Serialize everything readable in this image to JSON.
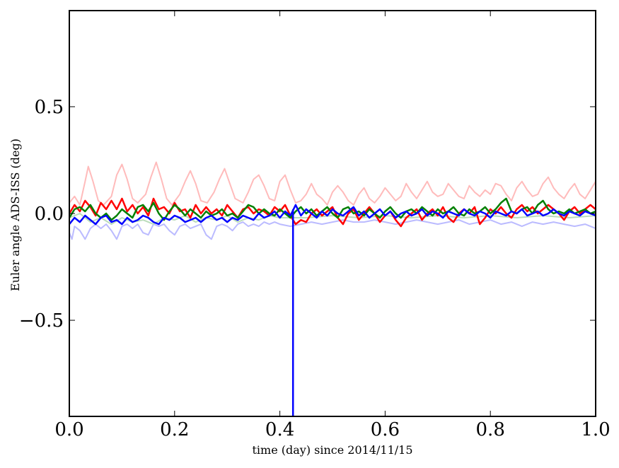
{
  "chart_data": {
    "type": "line",
    "title": "",
    "xlabel": "time (day) since 2014/11/15",
    "ylabel": "Euler angle ADS-ISS (deg)",
    "xlim": [
      0.0,
      1.0
    ],
    "ylim": [
      -0.95,
      0.95
    ],
    "xticks": [
      0.0,
      0.2,
      0.4,
      0.6,
      0.8,
      1.0
    ],
    "xtick_labels": [
      "0.0",
      "0.2",
      "0.4",
      "0.6",
      "0.8",
      "1.0"
    ],
    "yticks": [
      -0.5,
      0.0,
      0.5
    ],
    "ytick_labels": [
      "−0.5",
      "0.0",
      "0.5"
    ],
    "grid": false,
    "legend": "none",
    "spike": {
      "x": 0.425,
      "y_min": -0.95,
      "color": "#0000ff"
    },
    "series": [
      {
        "color": "#ffbbbb",
        "width": 2,
        "x": [
          0.0,
          0.01,
          0.02,
          0.03,
          0.036,
          0.045,
          0.055,
          0.065,
          0.08,
          0.09,
          0.1,
          0.11,
          0.12,
          0.13,
          0.145,
          0.155,
          0.165,
          0.175,
          0.185,
          0.195,
          0.21,
          0.22,
          0.23,
          0.24,
          0.25,
          0.262,
          0.275,
          0.285,
          0.295,
          0.305,
          0.315,
          0.33,
          0.34,
          0.35,
          0.36,
          0.37,
          0.38,
          0.39,
          0.4,
          0.41,
          0.42,
          0.43,
          0.44,
          0.45,
          0.46,
          0.47,
          0.48,
          0.49,
          0.5,
          0.51,
          0.52,
          0.53,
          0.54,
          0.55,
          0.56,
          0.57,
          0.58,
          0.59,
          0.6,
          0.61,
          0.62,
          0.63,
          0.64,
          0.65,
          0.66,
          0.67,
          0.68,
          0.69,
          0.7,
          0.71,
          0.72,
          0.73,
          0.74,
          0.75,
          0.76,
          0.77,
          0.78,
          0.79,
          0.8,
          0.81,
          0.82,
          0.83,
          0.84,
          0.85,
          0.86,
          0.87,
          0.88,
          0.89,
          0.9,
          0.91,
          0.92,
          0.93,
          0.94,
          0.95,
          0.96,
          0.97,
          0.98,
          0.99,
          1.0
        ],
        "y": [
          0.05,
          0.08,
          0.04,
          0.15,
          0.22,
          0.15,
          0.06,
          0.04,
          0.08,
          0.18,
          0.23,
          0.16,
          0.07,
          0.05,
          0.09,
          0.17,
          0.24,
          0.16,
          0.07,
          0.04,
          0.09,
          0.15,
          0.2,
          0.14,
          0.06,
          0.05,
          0.1,
          0.16,
          0.21,
          0.14,
          0.07,
          0.05,
          0.1,
          0.16,
          0.18,
          0.13,
          0.07,
          0.06,
          0.15,
          0.18,
          0.11,
          0.05,
          0.06,
          0.09,
          0.14,
          0.09,
          0.07,
          0.04,
          0.1,
          0.13,
          0.1,
          0.06,
          0.04,
          0.09,
          0.12,
          0.07,
          0.05,
          0.08,
          0.12,
          0.09,
          0.06,
          0.08,
          0.14,
          0.1,
          0.07,
          0.11,
          0.15,
          0.1,
          0.08,
          0.09,
          0.14,
          0.11,
          0.08,
          0.07,
          0.13,
          0.1,
          0.08,
          0.11,
          0.09,
          0.14,
          0.13,
          0.09,
          0.06,
          0.12,
          0.15,
          0.11,
          0.08,
          0.09,
          0.14,
          0.17,
          0.12,
          0.09,
          0.07,
          0.11,
          0.14,
          0.09,
          0.07,
          0.11,
          0.15
        ]
      },
      {
        "color": "#bbbbff",
        "width": 2,
        "x": [
          0.0,
          0.005,
          0.01,
          0.02,
          0.03,
          0.04,
          0.05,
          0.06,
          0.07,
          0.08,
          0.09,
          0.1,
          0.11,
          0.12,
          0.13,
          0.14,
          0.15,
          0.16,
          0.17,
          0.18,
          0.19,
          0.2,
          0.21,
          0.22,
          0.23,
          0.24,
          0.25,
          0.26,
          0.27,
          0.28,
          0.29,
          0.3,
          0.31,
          0.32,
          0.33,
          0.34,
          0.35,
          0.36,
          0.37,
          0.38,
          0.39,
          0.4,
          0.42,
          0.44,
          0.46,
          0.48,
          0.5,
          0.52,
          0.54,
          0.56,
          0.58,
          0.6,
          0.62,
          0.64,
          0.66,
          0.68,
          0.7,
          0.72,
          0.74,
          0.76,
          0.78,
          0.8,
          0.82,
          0.84,
          0.86,
          0.88,
          0.9,
          0.92,
          0.94,
          0.96,
          0.98,
          1.0
        ],
        "y": [
          -0.09,
          -0.12,
          -0.06,
          -0.08,
          -0.12,
          -0.07,
          -0.05,
          -0.07,
          -0.05,
          -0.08,
          -0.12,
          -0.06,
          -0.05,
          -0.07,
          -0.05,
          -0.09,
          -0.1,
          -0.05,
          -0.06,
          -0.05,
          -0.08,
          -0.1,
          -0.06,
          -0.05,
          -0.07,
          -0.06,
          -0.05,
          -0.1,
          -0.12,
          -0.06,
          -0.05,
          -0.06,
          -0.08,
          -0.05,
          -0.04,
          -0.06,
          -0.05,
          -0.06,
          -0.04,
          -0.05,
          -0.04,
          -0.05,
          -0.06,
          -0.05,
          -0.04,
          -0.05,
          -0.04,
          -0.03,
          -0.04,
          -0.04,
          -0.03,
          -0.04,
          -0.05,
          -0.04,
          -0.03,
          -0.04,
          -0.05,
          -0.04,
          -0.03,
          -0.05,
          -0.04,
          -0.03,
          -0.05,
          -0.04,
          -0.06,
          -0.04,
          -0.05,
          -0.04,
          -0.05,
          -0.06,
          -0.05,
          -0.07
        ]
      },
      {
        "color": "#bbddbb",
        "width": 2,
        "x": [
          0.0,
          0.02,
          0.04,
          0.06,
          0.08,
          0.1,
          0.12,
          0.14,
          0.16,
          0.18,
          0.2,
          0.22,
          0.24,
          0.26,
          0.28,
          0.3,
          0.32,
          0.34,
          0.36,
          0.38,
          0.4,
          0.45,
          0.5,
          0.55,
          0.6,
          0.65,
          0.7,
          0.75,
          0.8,
          0.85,
          0.9,
          0.95,
          1.0
        ],
        "y": [
          -0.02,
          0.0,
          -0.04,
          -0.02,
          -0.05,
          -0.02,
          -0.04,
          -0.03,
          -0.05,
          -0.02,
          -0.03,
          -0.01,
          -0.04,
          -0.02,
          -0.03,
          -0.01,
          -0.04,
          -0.02,
          -0.03,
          -0.01,
          -0.02,
          -0.02,
          -0.01,
          -0.02,
          -0.01,
          -0.02,
          -0.01,
          -0.02,
          -0.01,
          -0.02,
          -0.01,
          -0.02,
          -0.01
        ]
      },
      {
        "color": "#ff0000",
        "width": 2.5,
        "x": [
          0.0,
          0.01,
          0.02,
          0.03,
          0.04,
          0.05,
          0.06,
          0.07,
          0.08,
          0.09,
          0.1,
          0.11,
          0.12,
          0.13,
          0.14,
          0.15,
          0.16,
          0.17,
          0.18,
          0.19,
          0.2,
          0.21,
          0.22,
          0.23,
          0.24,
          0.25,
          0.26,
          0.27,
          0.28,
          0.29,
          0.3,
          0.31,
          0.32,
          0.33,
          0.34,
          0.35,
          0.36,
          0.37,
          0.38,
          0.39,
          0.4,
          0.41,
          0.42,
          0.43,
          0.44,
          0.45,
          0.46,
          0.47,
          0.48,
          0.49,
          0.5,
          0.51,
          0.52,
          0.53,
          0.54,
          0.55,
          0.56,
          0.57,
          0.58,
          0.59,
          0.6,
          0.61,
          0.62,
          0.63,
          0.64,
          0.65,
          0.66,
          0.67,
          0.68,
          0.69,
          0.7,
          0.71,
          0.72,
          0.73,
          0.74,
          0.75,
          0.76,
          0.77,
          0.78,
          0.79,
          0.8,
          0.81,
          0.82,
          0.83,
          0.84,
          0.85,
          0.86,
          0.87,
          0.88,
          0.89,
          0.9,
          0.91,
          0.92,
          0.93,
          0.94,
          0.95,
          0.96,
          0.97,
          0.98,
          0.99,
          1.0
        ],
        "y": [
          0.0,
          0.04,
          0.01,
          0.06,
          0.03,
          -0.01,
          0.05,
          0.02,
          0.06,
          0.02,
          0.07,
          0.01,
          0.04,
          0.0,
          0.03,
          -0.01,
          0.07,
          0.02,
          0.03,
          0.0,
          0.05,
          0.01,
          0.02,
          -0.02,
          0.04,
          0.0,
          0.03,
          0.0,
          0.02,
          -0.01,
          0.04,
          0.01,
          -0.02,
          0.02,
          0.03,
          0.0,
          0.02,
          0.01,
          -0.01,
          0.03,
          0.01,
          0.04,
          -0.01,
          -0.05,
          -0.03,
          -0.04,
          0.0,
          0.02,
          -0.01,
          0.01,
          0.03,
          -0.02,
          -0.05,
          0.0,
          0.02,
          -0.03,
          0.0,
          0.03,
          0.0,
          -0.04,
          -0.01,
          0.01,
          -0.03,
          -0.06,
          -0.02,
          0.0,
          0.02,
          -0.03,
          0.0,
          0.02,
          -0.01,
          0.03,
          -0.02,
          -0.04,
          0.0,
          0.02,
          0.0,
          0.03,
          -0.05,
          -0.02,
          0.02,
          0.0,
          0.03,
          0.0,
          -0.02,
          0.02,
          0.04,
          0.01,
          0.03,
          0.0,
          0.02,
          0.04,
          0.02,
          0.0,
          -0.03,
          0.01,
          0.03,
          0.0,
          0.02,
          0.04,
          0.02
        ]
      },
      {
        "color": "#008000",
        "width": 2.5,
        "x": [
          0.0,
          0.01,
          0.02,
          0.03,
          0.04,
          0.05,
          0.06,
          0.07,
          0.08,
          0.09,
          0.1,
          0.11,
          0.12,
          0.13,
          0.14,
          0.15,
          0.16,
          0.17,
          0.18,
          0.19,
          0.2,
          0.21,
          0.22,
          0.23,
          0.24,
          0.25,
          0.26,
          0.27,
          0.28,
          0.29,
          0.3,
          0.31,
          0.32,
          0.33,
          0.34,
          0.35,
          0.36,
          0.37,
          0.38,
          0.39,
          0.4,
          0.41,
          0.42,
          0.43,
          0.44,
          0.45,
          0.46,
          0.47,
          0.48,
          0.49,
          0.5,
          0.51,
          0.52,
          0.53,
          0.54,
          0.55,
          0.56,
          0.57,
          0.58,
          0.59,
          0.6,
          0.61,
          0.62,
          0.63,
          0.64,
          0.65,
          0.66,
          0.67,
          0.68,
          0.69,
          0.7,
          0.71,
          0.72,
          0.73,
          0.74,
          0.75,
          0.76,
          0.77,
          0.78,
          0.79,
          0.8,
          0.81,
          0.82,
          0.83,
          0.84,
          0.85,
          0.86,
          0.87,
          0.88,
          0.89,
          0.9,
          0.91,
          0.92,
          0.93,
          0.94,
          0.95,
          0.96,
          0.97,
          0.98,
          0.99,
          1.0
        ],
        "y": [
          -0.02,
          0.02,
          0.03,
          0.01,
          0.04,
          0.0,
          -0.02,
          0.0,
          -0.03,
          -0.01,
          0.02,
          0.0,
          -0.02,
          0.03,
          0.04,
          0.01,
          0.05,
          0.0,
          -0.03,
          0.01,
          0.04,
          0.02,
          -0.01,
          0.02,
          0.0,
          -0.02,
          0.01,
          -0.01,
          0.0,
          0.02,
          -0.01,
          0.0,
          -0.02,
          0.01,
          0.04,
          0.03,
          0.0,
          0.02,
          0.0,
          -0.01,
          0.02,
          0.0,
          -0.02,
          0.01,
          0.03,
          0.0,
          0.02,
          -0.01,
          0.01,
          0.03,
          0.0,
          -0.02,
          0.02,
          0.03,
          0.0,
          0.01,
          -0.01,
          0.02,
          0.0,
          -0.02,
          0.01,
          0.03,
          0.0,
          -0.02,
          0.01,
          0.02,
          0.0,
          0.03,
          0.01,
          -0.01,
          0.02,
          0.0,
          0.01,
          0.03,
          0.0,
          -0.01,
          0.02,
          0.0,
          0.01,
          0.03,
          0.0,
          0.02,
          0.05,
          0.07,
          0.01,
          0.0,
          0.02,
          0.03,
          0.0,
          0.04,
          0.06,
          0.02,
          0.0,
          0.01,
          0.0,
          0.02,
          0.0,
          0.01,
          0.02,
          0.0,
          0.01
        ]
      },
      {
        "color": "#0000ff",
        "width": 2.5,
        "x": [
          0.0,
          0.01,
          0.02,
          0.03,
          0.04,
          0.05,
          0.06,
          0.07,
          0.08,
          0.09,
          0.1,
          0.11,
          0.12,
          0.13,
          0.14,
          0.15,
          0.16,
          0.17,
          0.18,
          0.19,
          0.2,
          0.21,
          0.22,
          0.23,
          0.24,
          0.25,
          0.26,
          0.27,
          0.28,
          0.29,
          0.3,
          0.31,
          0.32,
          0.33,
          0.34,
          0.35,
          0.36,
          0.37,
          0.38,
          0.39,
          0.4,
          0.41,
          0.42,
          0.43,
          0.44,
          0.45,
          0.46,
          0.47,
          0.48,
          0.49,
          0.5,
          0.51,
          0.52,
          0.53,
          0.54,
          0.55,
          0.56,
          0.57,
          0.58,
          0.59,
          0.6,
          0.61,
          0.62,
          0.63,
          0.64,
          0.65,
          0.66,
          0.67,
          0.68,
          0.69,
          0.7,
          0.71,
          0.72,
          0.73,
          0.74,
          0.75,
          0.76,
          0.77,
          0.78,
          0.79,
          0.8,
          0.81,
          0.82,
          0.83,
          0.84,
          0.85,
          0.86,
          0.87,
          0.88,
          0.89,
          0.9,
          0.91,
          0.92,
          0.93,
          0.94,
          0.95,
          0.96,
          0.97,
          0.98,
          0.99,
          1.0
        ],
        "y": [
          -0.05,
          -0.02,
          -0.04,
          -0.01,
          -0.03,
          -0.05,
          -0.02,
          -0.01,
          -0.04,
          -0.03,
          -0.05,
          -0.02,
          -0.04,
          -0.03,
          -0.01,
          -0.02,
          -0.04,
          -0.05,
          -0.02,
          -0.03,
          -0.01,
          -0.02,
          -0.04,
          -0.03,
          -0.02,
          -0.04,
          -0.02,
          -0.01,
          -0.03,
          -0.02,
          -0.04,
          -0.02,
          -0.03,
          -0.01,
          -0.02,
          -0.03,
          0.0,
          -0.02,
          -0.01,
          0.01,
          -0.02,
          0.01,
          -0.01,
          0.04,
          -0.01,
          0.02,
          0.0,
          -0.02,
          0.01,
          -0.01,
          0.02,
          0.0,
          -0.01,
          0.01,
          0.03,
          -0.01,
          0.01,
          -0.02,
          0.0,
          0.02,
          -0.01,
          0.01,
          -0.02,
          0.0,
          0.01,
          -0.01,
          0.0,
          0.02,
          -0.01,
          0.01,
          0.0,
          -0.02,
          0.01,
          0.0,
          -0.01,
          0.02,
          0.0,
          -0.01,
          0.01,
          0.0,
          -0.02,
          0.01,
          0.0,
          -0.01,
          0.01,
          0.0,
          0.02,
          -0.01,
          0.0,
          0.01,
          -0.01,
          0.0,
          0.02,
          0.0,
          -0.01,
          0.01,
          0.0,
          -0.01,
          0.01,
          0.0,
          -0.01
        ]
      }
    ]
  }
}
